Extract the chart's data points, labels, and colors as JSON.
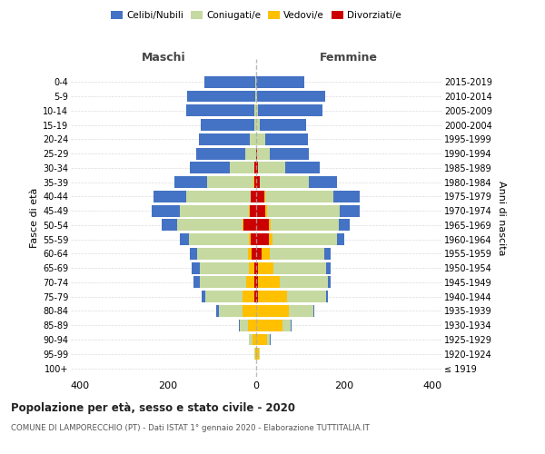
{
  "age_groups": [
    "100+",
    "95-99",
    "90-94",
    "85-89",
    "80-84",
    "75-79",
    "70-74",
    "65-69",
    "60-64",
    "55-59",
    "50-54",
    "45-49",
    "40-44",
    "35-39",
    "30-34",
    "25-29",
    "20-24",
    "15-19",
    "10-14",
    "5-9",
    "0-4"
  ],
  "birth_years": [
    "≤ 1919",
    "1920-1924",
    "1925-1929",
    "1930-1934",
    "1935-1939",
    "1940-1944",
    "1945-1949",
    "1950-1954",
    "1955-1959",
    "1960-1964",
    "1965-1969",
    "1970-1974",
    "1975-1979",
    "1980-1984",
    "1985-1989",
    "1990-1994",
    "1995-1999",
    "2000-2004",
    "2005-2009",
    "2010-2014",
    "2015-2019"
  ],
  "colors": {
    "celibi": "#4472c4",
    "coniugati": "#c5d9a0",
    "vedovi": "#ffc000",
    "divorziati": "#cc0000"
  },
  "maschi": {
    "celibi": [
      0,
      0,
      1,
      2,
      5,
      8,
      14,
      19,
      18,
      20,
      35,
      65,
      75,
      75,
      90,
      110,
      115,
      120,
      155,
      155,
      115
    ],
    "coniugati": [
      0,
      2,
      8,
      20,
      55,
      85,
      105,
      110,
      115,
      135,
      150,
      155,
      145,
      105,
      55,
      25,
      15,
      5,
      4,
      2,
      2
    ],
    "vedovi": [
      0,
      2,
      8,
      18,
      30,
      25,
      18,
      12,
      8,
      5,
      2,
      2,
      1,
      1,
      0,
      0,
      0,
      0,
      0,
      0,
      0
    ],
    "divorziati": [
      0,
      0,
      0,
      0,
      0,
      5,
      5,
      5,
      10,
      12,
      28,
      15,
      12,
      5,
      5,
      0,
      0,
      0,
      0,
      0,
      0
    ]
  },
  "femmine": {
    "nubili": [
      0,
      0,
      1,
      2,
      2,
      5,
      5,
      10,
      14,
      16,
      25,
      45,
      60,
      65,
      80,
      90,
      98,
      105,
      145,
      155,
      108
    ],
    "coniugate": [
      0,
      2,
      6,
      18,
      55,
      88,
      110,
      118,
      125,
      145,
      155,
      165,
      155,
      110,
      60,
      28,
      20,
      8,
      5,
      2,
      1
    ],
    "vedove": [
      0,
      6,
      25,
      60,
      75,
      65,
      48,
      35,
      18,
      10,
      5,
      4,
      2,
      1,
      0,
      0,
      0,
      0,
      0,
      0,
      0
    ],
    "divorziate": [
      0,
      0,
      0,
      0,
      0,
      5,
      5,
      5,
      12,
      28,
      28,
      20,
      18,
      8,
      5,
      2,
      0,
      0,
      0,
      0,
      0
    ]
  },
  "xlim": 420,
  "title": "Popolazione per età, sesso e stato civile - 2020",
  "subtitle": "COMUNE DI LAMPORECCHIO (PT) - Dati ISTAT 1° gennaio 2020 - Elaborazione TUTTITALIA.IT",
  "ylabel_left": "Fasce di età",
  "ylabel_right": "Anni di nascita"
}
